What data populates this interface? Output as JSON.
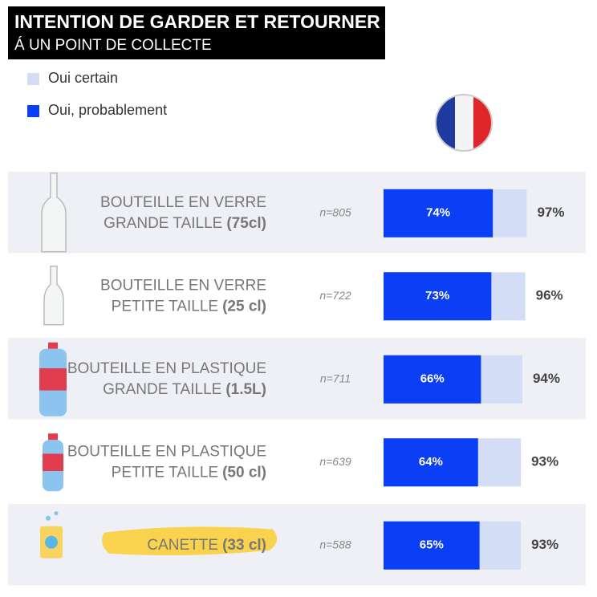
{
  "chart_data": {
    "type": "overlay-bar",
    "title": "INTENTION DE GARDER ET RETOURNER",
    "subtitle": "Á UN POINT DE COLLECTE",
    "categories": [
      {
        "line1": "BOUTEILLE EN VERRE",
        "line2": "GRANDE TAILLE",
        "size": "(75cl)"
      },
      {
        "line1": "BOUTEILLE EN VERRE",
        "line2": "PETITE TAILLE",
        "size": "(25 cl)"
      },
      {
        "line1": "BOUTEILLE EN PLASTIQUE",
        "line2": "GRANDE TAILLE",
        "size": "(1.5L)"
      },
      {
        "line1": "BOUTEILLE EN PLASTIQUE",
        "line2": "PETITE TAILLE",
        "size": "(50 cl)"
      },
      {
        "line2": "CANETTE",
        "size": "(33 cl)"
      }
    ],
    "n_labels": [
      "n=805",
      "n=722",
      "n=711",
      "n=639",
      "n=588"
    ],
    "series": [
      {
        "name": "Oui certain",
        "color": "#d3ddf5",
        "values": [
          97,
          96,
          94,
          93,
          93
        ],
        "value_labels": [
          "97%",
          "96%",
          "94%",
          "93%",
          "93%"
        ]
      },
      {
        "name": "Oui, probablement",
        "color": "#0b3ff5",
        "values": [
          74,
          73,
          66,
          64,
          65
        ],
        "value_labels": [
          "74%",
          "73%",
          "66%",
          "64%",
          "65%"
        ]
      }
    ]
  }
}
